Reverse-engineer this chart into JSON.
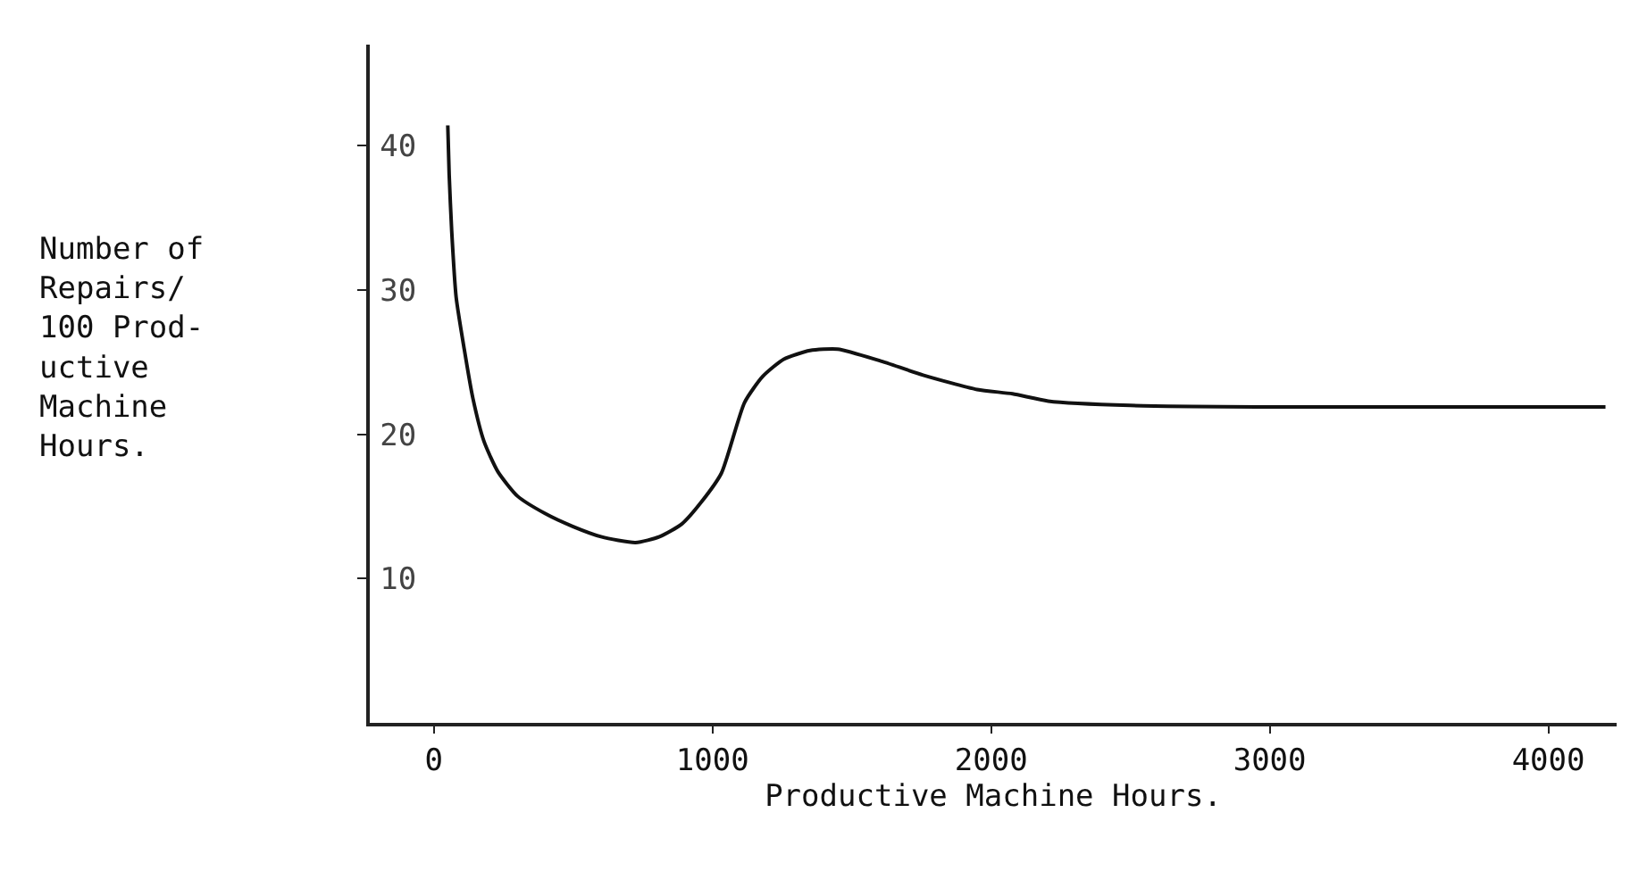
{
  "chart_data": {
    "type": "line",
    "xlabel": "Productive Machine Hours.",
    "annotations": [
      "Number of\nRepairs/\n100 Prod-\nuctive\nMachine\nHours."
    ],
    "xlim": [
      -230,
      4245
    ],
    "ylim": [
      0,
      47
    ],
    "xticks": [
      0,
      1000,
      2000,
      3000,
      4000
    ],
    "yticks": [
      10,
      20,
      30,
      40
    ],
    "series": [
      {
        "color": "#111111",
        "x": [
          50,
          55,
          64,
          80,
          109,
          140,
          180,
          230,
          301,
          400,
          500,
          600,
          724,
          810,
          891,
          960,
          1032,
          1115,
          1180,
          1256,
          1350,
          1449,
          1600,
          1756,
          1950,
          2077,
          2205,
          2500,
          3000,
          3500,
          4000,
          4205
        ],
        "values": [
          41.4,
          38,
          34.1,
          29.5,
          25.9,
          22.5,
          19.5,
          17.4,
          15.7,
          14.5,
          13.6,
          12.9,
          12.5,
          12.9,
          13.8,
          15.3,
          17.3,
          22.2,
          24,
          25.2,
          25.8,
          25.9,
          25.1,
          24.1,
          23.1,
          22.8,
          22.3,
          22,
          21.9,
          21.9,
          21.9,
          21.9
        ]
      }
    ]
  }
}
